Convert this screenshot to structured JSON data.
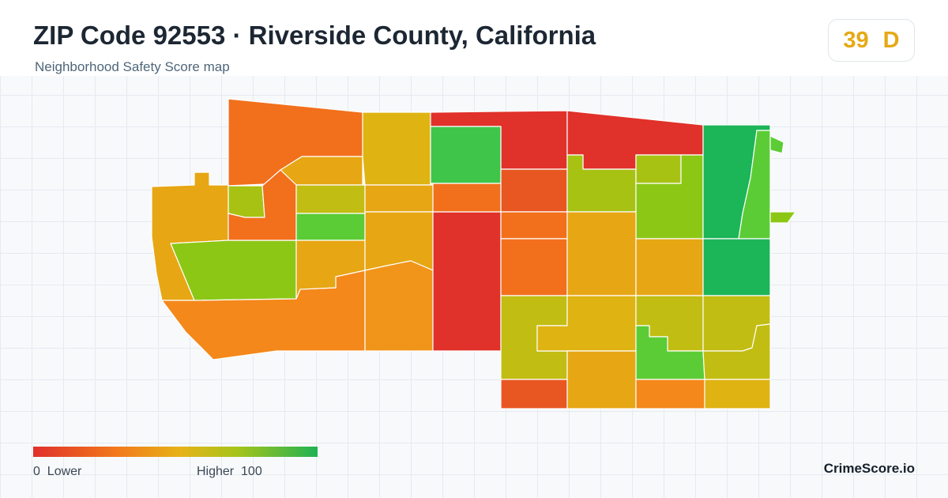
{
  "header": {
    "title": "ZIP Code 92553 · Riverside County, California",
    "subtitle": "Neighborhood Safety Score map"
  },
  "score": {
    "value": "39",
    "grade": "D",
    "color": "#e6a915"
  },
  "legend": {
    "low_value": "0",
    "low_label": "Lower",
    "high_label": "Higher",
    "high_value": "100",
    "colors": [
      "#e0302a",
      "#f27b1c",
      "#e6b318",
      "#a5c41a",
      "#1fb253"
    ]
  },
  "brand": "CrimeScore.io",
  "palette": {
    "red": "#e0312a",
    "red_orange": "#e85722",
    "orange": "#f26f1c",
    "orange_light": "#f4881a",
    "amber": "#e7a614",
    "gold": "#dfb312",
    "olive": "#c2bd12",
    "yellow_green": "#a8c214",
    "lime": "#8cc716",
    "bright_green": "#5ccc36",
    "green": "#3fc54a",
    "deep_green": "#1cb557"
  }
}
